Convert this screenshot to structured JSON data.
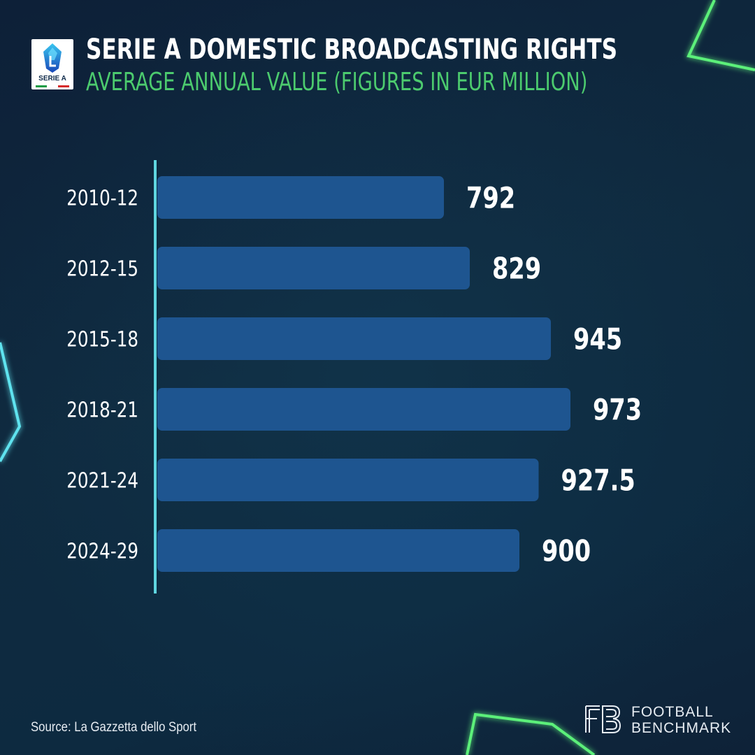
{
  "header": {
    "title": "SERIE A DOMESTIC BROADCASTING RIGHTS",
    "subtitle": "AVERAGE ANNUAL VALUE (FIGURES IN EUR MILLION)",
    "logo_text": "SERIE A"
  },
  "colors": {
    "background": "#0f2a3f",
    "bar": "#1e5590",
    "axis": "#5fd6e0",
    "subtitle": "#4ccb6e",
    "text": "#ffffff",
    "neon_green": "#5cf07a",
    "neon_cyan": "#5fe3ef"
  },
  "chart_data": {
    "type": "bar",
    "orientation": "horizontal",
    "title": "SERIE A DOMESTIC BROADCASTING RIGHTS",
    "subtitle": "AVERAGE ANNUAL VALUE (FIGURES IN EUR MILLION)",
    "xlabel": "",
    "ylabel": "",
    "categories": [
      "2010-12",
      "2012-15",
      "2015-18",
      "2018-21",
      "2021-24",
      "2024-29"
    ],
    "values": [
      792,
      829,
      945,
      973,
      927.5,
      900
    ],
    "value_labels": [
      "792",
      "829",
      "945",
      "973",
      "927.5",
      "900"
    ],
    "unit": "EUR million",
    "xlim": [
      500,
      1000
    ],
    "grid": false,
    "legend": "none"
  },
  "footer": {
    "source": "Source: La Gazzetta dello Sport",
    "brand_line1": "FOOTBALL",
    "brand_line2": "BENCHMARK",
    "brand_icon": "fb-monogram-icon"
  }
}
